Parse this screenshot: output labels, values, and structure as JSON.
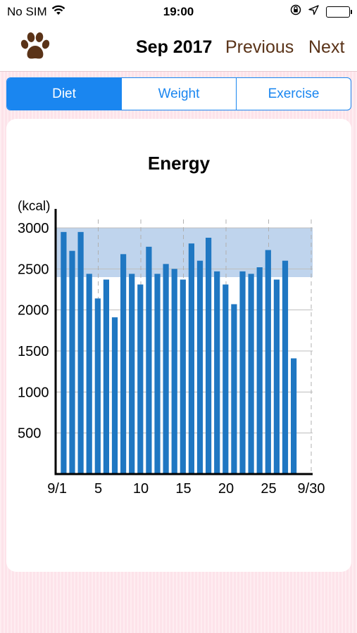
{
  "status_bar": {
    "carrier": "No SIM",
    "time": "19:00"
  },
  "nav": {
    "title": "Sep 2017",
    "previous_label": "Previous",
    "next_label": "Next"
  },
  "tabs": [
    {
      "label": "Diet",
      "active": true
    },
    {
      "label": "Weight",
      "active": false
    },
    {
      "label": "Exercise",
      "active": false
    }
  ],
  "colors": {
    "accent": "#1a86f0",
    "bar": "#1f77c2",
    "band": "#9dbde3",
    "nav_text": "#5a3318",
    "paw": "#5a3318"
  },
  "chart_data": {
    "type": "bar",
    "title": "Energy",
    "ylabel": "(kcal)",
    "xlabel": "",
    "ylim": [
      0,
      3000
    ],
    "yticks": [
      500,
      1000,
      1500,
      2000,
      2500,
      3000
    ],
    "xlim": [
      0,
      30
    ],
    "xticks": [
      {
        "day": 1,
        "label": "9/1"
      },
      {
        "day": 5,
        "label": "5"
      },
      {
        "day": 10,
        "label": "10"
      },
      {
        "day": 15,
        "label": "15"
      },
      {
        "day": 20,
        "label": "20"
      },
      {
        "day": 25,
        "label": "25"
      },
      {
        "day": 30,
        "label": "9/30"
      }
    ],
    "target_range": [
      2400,
      3000
    ],
    "grid": true,
    "x": [
      1,
      2,
      3,
      4,
      5,
      6,
      7,
      8,
      9,
      10,
      11,
      12,
      13,
      14,
      15,
      16,
      17,
      18,
      19,
      20,
      21,
      22,
      23,
      24,
      25,
      26,
      27,
      28
    ],
    "values": [
      2950,
      2720,
      2950,
      2440,
      2140,
      2370,
      1910,
      2680,
      2440,
      2310,
      2770,
      2440,
      2560,
      2500,
      2370,
      2810,
      2600,
      2880,
      2470,
      2310,
      2070,
      2470,
      2440,
      2520,
      2730,
      2370,
      2600,
      1410
    ]
  }
}
